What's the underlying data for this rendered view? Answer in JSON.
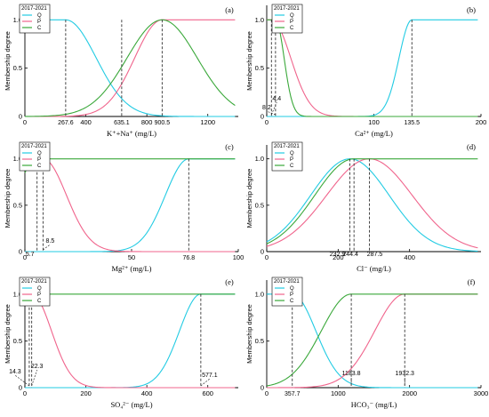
{
  "colors": {
    "Q": "#22cbe3",
    "P": "#f0648c",
    "C": "#3aa83a"
  },
  "chart_data": [
    {
      "id": "a",
      "type": "line",
      "panel_label": "(a)",
      "legend_title": "2017-2021",
      "legend": [
        "Q",
        "P",
        "C"
      ],
      "xlabel": "K⁺+Na⁺ (mg/L)",
      "ylabel": "Membership degree",
      "xlim": [
        0,
        1400
      ],
      "ylim": [
        0,
        1.15
      ],
      "xticks": [
        0,
        400,
        800,
        1200
      ],
      "yticks": [
        0,
        0.5,
        1.0
      ],
      "peaks": [
        267.6,
        635.1,
        900.5
      ],
      "curves": {
        "Q": {
          "sigma": 200
        },
        "P": {
          "sigma": 180
        },
        "C": {
          "sigma": 230
        }
      },
      "annotations": [
        {
          "text": "267.6",
          "x": 267.6
        },
        {
          "text": "635.1",
          "x": 635.1
        },
        {
          "text": "900.5",
          "x": 900.5
        }
      ]
    },
    {
      "id": "b",
      "type": "line",
      "panel_label": "(b)",
      "legend_title": "2017-2021",
      "legend": [
        "Q",
        "P",
        "C"
      ],
      "xlabel": "Ca²⁺ (mg/L)",
      "ylabel": "Membership degree",
      "xlim": [
        0,
        200
      ],
      "ylim": [
        0,
        1.15
      ],
      "xticks": [
        0,
        100,
        200
      ],
      "yticks": [
        0,
        0.5,
        1.0
      ],
      "peaks": [
        135.5,
        4.4,
        8.2
      ],
      "curves": {
        "Q": {
          "sigma": 12
        },
        "P": {
          "sigma": 18
        },
        "C": {
          "sigma": 8
        }
      },
      "annotations": [
        {
          "text": "8.2",
          "x": 8.2
        },
        {
          "text": "4.4",
          "x": 4.4
        },
        {
          "text": "135.5",
          "x": 135.5
        }
      ]
    },
    {
      "id": "c",
      "type": "line",
      "panel_label": "(c)",
      "legend_title": "2017-2021",
      "legend": [
        "Q",
        "P",
        "C"
      ],
      "xlabel": "Mg²⁺ (mg/L)",
      "ylabel": "Membership degree",
      "xlim": [
        0,
        100
      ],
      "ylim": [
        0,
        1.15
      ],
      "xticks": [
        0,
        50,
        100
      ],
      "yticks": [
        0,
        0.5,
        1.0
      ],
      "peaks": [
        76.8,
        8.5,
        5.7
      ],
      "curves": {
        "Q": {
          "sigma": 11
        },
        "P": {
          "sigma": 11
        },
        "C": {
          "sigma": 10
        }
      },
      "annotations": [
        {
          "text": "5.7",
          "x": 5.7
        },
        {
          "text": "8.5",
          "x": 8.5
        },
        {
          "text": "76.8",
          "x": 76.8
        }
      ]
    },
    {
      "id": "d",
      "type": "line",
      "panel_label": "(d)",
      "legend_title": "2017-2021",
      "legend": [
        "Q",
        "P",
        "C"
      ],
      "xlabel": "Cl⁻ (mg/L)",
      "ylabel": "Membership degree",
      "xlim": [
        0,
        600
      ],
      "ylim": [
        0,
        1.15
      ],
      "xticks": [
        0,
        200,
        400
      ],
      "yticks": [
        0,
        0.5,
        1.0
      ],
      "peaks": [
        232.9,
        287.5,
        244.4
      ],
      "curves": {
        "Q": {
          "sigma": 110
        },
        "P": {
          "sigma": 120
        },
        "C": {
          "sigma": 110
        }
      },
      "annotations": [
        {
          "text": "232.9",
          "x": 232.9
        },
        {
          "text": "244.4",
          "x": 244.4
        },
        {
          "text": "287.5",
          "x": 287.5
        }
      ]
    },
    {
      "id": "e",
      "type": "line",
      "panel_label": "(e)",
      "legend_title": "2017-2021",
      "legend": [
        "Q",
        "P",
        "C"
      ],
      "xlabel": "SO₄²⁻ (mg/L)",
      "ylabel": "Membership degree",
      "xlim": [
        0,
        700
      ],
      "ylim": [
        0,
        1.15
      ],
      "xticks": [
        0,
        200,
        400,
        600
      ],
      "yticks": [
        0,
        0.5,
        1.0
      ],
      "peaks": [
        577.1,
        22.3,
        14.3
      ],
      "curves": {
        "Q": {
          "sigma": 70
        },
        "P": {
          "sigma": 65
        },
        "C": {
          "sigma": 50
        }
      },
      "annotations": [
        {
          "text": "14.3",
          "x": 14.3
        },
        {
          "text": "22.3",
          "x": 22.3
        },
        {
          "text": "577.1",
          "x": 577.1
        }
      ]
    },
    {
      "id": "f",
      "type": "line",
      "panel_label": "(f)",
      "legend_title": "2017-2021",
      "legend": [
        "Q",
        "P",
        "C"
      ],
      "xlabel": "HCO₃⁻ (mg/L)",
      "ylabel": "Membership degree",
      "xlim": [
        0,
        3000
      ],
      "ylim": [
        0,
        1.15
      ],
      "xticks": [
        0,
        1000,
        2000,
        3000
      ],
      "yticks": [
        0,
        0.5,
        1.0
      ],
      "peaks": [
        357.7,
        1932.3,
        1183.8
      ],
      "curves": {
        "Q": {
          "sigma": 330
        },
        "P": {
          "sigma": 420
        },
        "C": {
          "sigma": 420
        }
      },
      "annotations": [
        {
          "text": "357.7",
          "x": 357.7
        },
        {
          "text": "1183.8",
          "x": 1183.8
        },
        {
          "text": "1932.3",
          "x": 1932.3
        }
      ]
    }
  ]
}
